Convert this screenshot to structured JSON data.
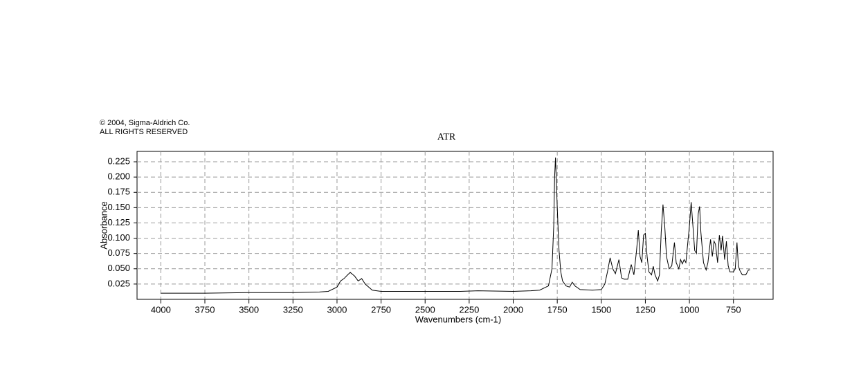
{
  "chart_data": {
    "type": "line",
    "title": "ATR",
    "annotations": [
      "© 2004, Sigma-Aldrich Co.",
      "ALL RIGHTS RESERVED"
    ],
    "xlabel": "Wavenumbers (cm-1)",
    "ylabel": "Absorbance",
    "color": "#000000",
    "grid": true,
    "x": [
      4000,
      3750,
      3500,
      3250,
      3100,
      3050,
      3000,
      2980,
      2960,
      2940,
      2925,
      2900,
      2880,
      2860,
      2840,
      2800,
      2750,
      2500,
      2300,
      2200,
      2000,
      1900,
      1850,
      1800,
      1780,
      1770,
      1765,
      1760,
      1750,
      1740,
      1730,
      1720,
      1700,
      1680,
      1665,
      1650,
      1620,
      1550,
      1500,
      1480,
      1465,
      1450,
      1435,
      1420,
      1400,
      1385,
      1370,
      1350,
      1330,
      1315,
      1300,
      1290,
      1280,
      1270,
      1260,
      1250,
      1240,
      1230,
      1215,
      1205,
      1195,
      1180,
      1170,
      1160,
      1150,
      1140,
      1130,
      1115,
      1100,
      1085,
      1075,
      1060,
      1050,
      1040,
      1030,
      1020,
      1010,
      1000,
      990,
      980,
      970,
      960,
      950,
      942,
      935,
      920,
      905,
      895,
      880,
      870,
      860,
      852,
      840,
      830,
      820,
      812,
      800,
      790,
      780,
      770,
      750,
      740,
      730,
      722,
      715,
      700,
      680,
      665,
      655
    ],
    "values": [
      0.01,
      0.01,
      0.011,
      0.011,
      0.012,
      0.013,
      0.02,
      0.03,
      0.034,
      0.04,
      0.044,
      0.038,
      0.03,
      0.034,
      0.025,
      0.015,
      0.013,
      0.013,
      0.013,
      0.014,
      0.013,
      0.014,
      0.015,
      0.022,
      0.05,
      0.12,
      0.2,
      0.232,
      0.15,
      0.08,
      0.045,
      0.03,
      0.022,
      0.02,
      0.028,
      0.022,
      0.016,
      0.015,
      0.016,
      0.025,
      0.045,
      0.068,
      0.05,
      0.042,
      0.065,
      0.035,
      0.033,
      0.033,
      0.057,
      0.04,
      0.08,
      0.113,
      0.07,
      0.06,
      0.105,
      0.108,
      0.07,
      0.045,
      0.04,
      0.054,
      0.04,
      0.03,
      0.04,
      0.11,
      0.155,
      0.12,
      0.07,
      0.05,
      0.055,
      0.093,
      0.06,
      0.05,
      0.065,
      0.058,
      0.065,
      0.06,
      0.09,
      0.12,
      0.159,
      0.12,
      0.08,
      0.075,
      0.14,
      0.152,
      0.11,
      0.06,
      0.048,
      0.06,
      0.098,
      0.07,
      0.095,
      0.09,
      0.06,
      0.105,
      0.08,
      0.104,
      0.065,
      0.095,
      0.055,
      0.045,
      0.045,
      0.05,
      0.093,
      0.055,
      0.048,
      0.04,
      0.04,
      0.048,
      0.048
    ],
    "xlim": [
      4135,
      525
    ],
    "ylim": [
      0,
      0.242
    ],
    "xticks": [
      4000,
      3750,
      3500,
      3250,
      3000,
      2750,
      2500,
      2250,
      2000,
      1750,
      1500,
      1250,
      1000,
      750
    ],
    "yticks": [
      0.025,
      {
        "value": 0.05,
        "label": "0.050"
      },
      0.075,
      {
        "value": 0.1,
        "label": "0.100"
      },
      0.125,
      {
        "value": 0.15,
        "label": "0.150"
      },
      0.175,
      {
        "value": 0.2,
        "label": "0.200"
      },
      0.225
    ]
  }
}
